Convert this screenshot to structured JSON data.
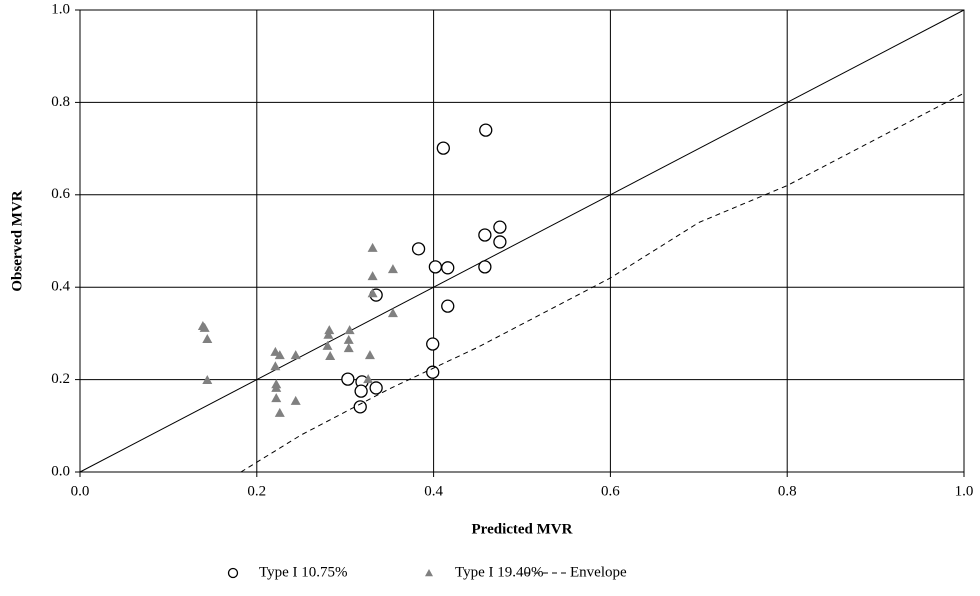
{
  "chart_data": {
    "type": "scatter",
    "xlabel": "Predicted MVR",
    "ylabel": "Observed MVR",
    "xlim": [
      0,
      1
    ],
    "ylim": [
      0,
      1
    ],
    "xticks": [
      {
        "value": 0,
        "label": "0.0"
      },
      0.2,
      0.4,
      0.6,
      0.8,
      {
        "value": 1,
        "label": "1.0"
      }
    ],
    "yticks": [
      {
        "value": 0,
        "label": "0.0"
      },
      0.2,
      0.4,
      0.6,
      0.8,
      {
        "value": 1,
        "label": "1.0"
      }
    ],
    "grid": true,
    "legend": "bottom",
    "series": [
      {
        "name": "Type I 10.75%",
        "marker": "circle",
        "color": "#000000",
        "x": [
          0.459,
          0.411,
          0.475,
          0.475,
          0.458,
          0.458,
          0.383,
          0.402,
          0.416,
          0.335,
          0.416,
          0.399,
          0.399,
          0.303,
          0.319,
          0.318,
          0.335,
          0.317
        ],
        "values": [
          0.74,
          0.701,
          0.53,
          0.498,
          0.513,
          0.444,
          0.483,
          0.444,
          0.442,
          0.383,
          0.359,
          0.277,
          0.216,
          0.201,
          0.195,
          0.175,
          0.182,
          0.141
        ]
      },
      {
        "name": "Type I 19.40%",
        "marker": "triangle",
        "color": "#808080",
        "x": [
          0.139,
          0.141,
          0.144,
          0.144,
          0.221,
          0.226,
          0.244,
          0.221,
          0.222,
          0.222,
          0.222,
          0.226,
          0.244,
          0.282,
          0.281,
          0.28,
          0.283,
          0.305,
          0.304,
          0.304,
          0.328,
          0.326,
          0.331,
          0.331,
          0.331,
          0.354,
          0.354
        ],
        "values": [
          0.316,
          0.312,
          0.288,
          0.199,
          0.26,
          0.253,
          0.253,
          0.229,
          0.19,
          0.182,
          0.16,
          0.128,
          0.154,
          0.307,
          0.297,
          0.273,
          0.251,
          0.307,
          0.286,
          0.268,
          0.253,
          0.201,
          0.485,
          0.424,
          0.387,
          0.439,
          0.344
        ]
      },
      {
        "name": "Envelope",
        "marker": "dashed-line",
        "color": "#000000",
        "x": [
          0.182,
          0.25,
          0.35,
          0.45,
          0.6,
          0.7,
          0.8,
          0.9,
          1.0
        ],
        "values": [
          0,
          0.08,
          0.18,
          0.27,
          0.42,
          0.54,
          0.62,
          0.72,
          0.82
        ]
      }
    ]
  }
}
